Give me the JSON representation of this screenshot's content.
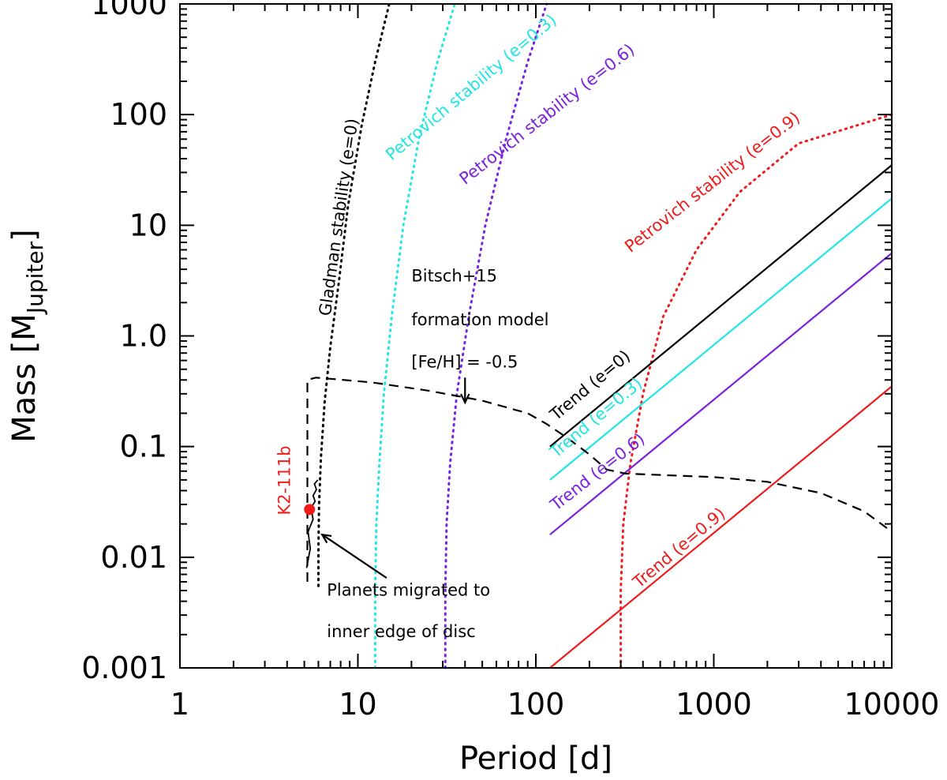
{
  "chart_data": {
    "type": "line",
    "xscale": "log",
    "yscale": "log",
    "xlim": [
      1,
      10000
    ],
    "ylim": [
      0.001,
      1000
    ],
    "xlabel": "Period [d]",
    "ylabel": "Mass [M",
    "ylabel_sub": "Jupiter",
    "ylabel_close": "]",
    "xticks": [
      1,
      10,
      100,
      1000,
      10000
    ],
    "xtick_labels": [
      "1",
      "10",
      "100",
      "1000",
      "10000"
    ],
    "yticks": [
      0.001,
      0.01,
      0.1,
      1.0,
      10,
      100,
      1000
    ],
    "ytick_labels": [
      "0.001",
      "0.01",
      "0.1",
      "1.0",
      "10",
      "100",
      "1000"
    ],
    "colors": {
      "black": "#000000",
      "cyan": "#22e5e5",
      "purple": "#7a22dd",
      "red": "#ee1c1c"
    },
    "series": [
      {
        "name": "Gladman stability (e=0)",
        "style": "dotted",
        "color": "black",
        "x": [
          6.0,
          6.0,
          6.05,
          6.2,
          6.5,
          7.0,
          7.8,
          8.8,
          10.5,
          12.5,
          15.0
        ],
        "y": [
          0.0055,
          0.012,
          0.03,
          0.08,
          0.25,
          0.8,
          3.0,
          15,
          80,
          300,
          1000
        ]
      },
      {
        "name": "Petrovich stability (e=0.3)",
        "style": "dotted",
        "color": "cyan",
        "x": [
          12.5,
          12.5,
          12.7,
          13.2,
          14.0,
          15.5,
          18.0,
          22.0,
          28.0,
          35.0
        ],
        "y": [
          0.001,
          0.005,
          0.02,
          0.07,
          0.3,
          1.5,
          10,
          60,
          300,
          1000
        ]
      },
      {
        "name": "Petrovich stability (e=0.6)",
        "style": "dotted",
        "color": "purple",
        "x": [
          31.0,
          31.0,
          31.5,
          33.0,
          36.0,
          42.0,
          52.0,
          68.0,
          90.0,
          115.0
        ],
        "y": [
          0.001,
          0.005,
          0.02,
          0.07,
          0.3,
          1.5,
          10,
          60,
          300,
          1000
        ]
      },
      {
        "name": "Petrovich stability (e=0.9)",
        "style": "dotted",
        "color": "red",
        "x": [
          300,
          300,
          310,
          340,
          400,
          520,
          800,
          1400,
          3000,
          10000
        ],
        "y": [
          0.001,
          0.005,
          0.02,
          0.07,
          0.3,
          1.5,
          6,
          20,
          55,
          100
        ]
      },
      {
        "name": "Trend (e=0)",
        "style": "solid",
        "color": "black",
        "x": [
          120,
          10000
        ],
        "y": [
          0.1,
          35
        ]
      },
      {
        "name": "Trend (e=0.3)",
        "style": "solid",
        "color": "cyan",
        "x": [
          120,
          10000
        ],
        "y": [
          0.05,
          17.5
        ]
      },
      {
        "name": "Trend (e=0.6)",
        "style": "solid",
        "color": "purple",
        "x": [
          120,
          10000
        ],
        "y": [
          0.016,
          5.6
        ]
      },
      {
        "name": "Trend (e=0.9)",
        "style": "solid",
        "color": "red",
        "x": [
          120,
          10000
        ],
        "y": [
          0.001,
          0.35
        ]
      },
      {
        "name": "Bitsch+15 formation model",
        "style": "dashed",
        "color": "black",
        "x": [
          5.2,
          5.2,
          5.8,
          7.0,
          12,
          25,
          50,
          90,
          115,
          150,
          200,
          250,
          320,
          1000,
          2000,
          4000,
          7000,
          10000
        ],
        "y": [
          0.006,
          0.4,
          0.42,
          0.41,
          0.38,
          0.32,
          0.26,
          0.2,
          0.16,
          0.12,
          0.085,
          0.062,
          0.057,
          0.053,
          0.048,
          0.038,
          0.026,
          0.017
        ]
      },
      {
        "name": "Planets migrated to inner edge of disc",
        "style": "wiggle",
        "color": "black",
        "x": [
          5.15,
          5.4,
          5.25,
          5.6,
          5.45,
          5.75,
          5.6,
          5.85,
          5.7,
          5.95
        ],
        "y": [
          0.008,
          0.012,
          0.017,
          0.022,
          0.028,
          0.032,
          0.036,
          0.041,
          0.046,
          0.05
        ]
      }
    ],
    "points": [
      {
        "name": "K2-111b",
        "x": 5.35,
        "y": 0.027,
        "color": "red"
      }
    ],
    "annotations": [
      {
        "id": "gladman",
        "text": "Gladman stability (e=0)",
        "color": "black",
        "x": 7.0,
        "y": 1.5,
        "angle": -82
      },
      {
        "id": "pet03",
        "text": "Petrovich stability (e=0.3)",
        "color": "cyan",
        "x": 15.5,
        "y": 38,
        "angle": -40
      },
      {
        "id": "pet06",
        "text": "Petrovich stability (e=0.6)",
        "color": "purple",
        "x": 40,
        "y": 23,
        "angle": -38
      },
      {
        "id": "pet09",
        "text": "Petrovich stability (e=0.9)",
        "color": "red",
        "x": 340,
        "y": 5.6,
        "angle": -38
      },
      {
        "id": "trend0",
        "text": "Trend (e=0)",
        "color": "black",
        "x": 130,
        "y": 0.17,
        "angle": -40
      },
      {
        "id": "trend03",
        "text": "Trend (e=0.3)",
        "color": "cyan",
        "x": 130,
        "y": 0.078,
        "angle": -40
      },
      {
        "id": "trend06",
        "text": "Trend (e=0.6)",
        "color": "purple",
        "x": 130,
        "y": 0.026,
        "angle": -38
      },
      {
        "id": "trend09",
        "text": "Trend (e=0.9)",
        "color": "red",
        "x": 380,
        "y": 0.0052,
        "angle": -40
      },
      {
        "id": "k2label",
        "text": "K2-111b",
        "color": "red",
        "x": 4.15,
        "y": 0.024,
        "angle": -90
      },
      {
        "id": "bitsch1",
        "text": "Bitsch+15",
        "color": "black",
        "x": 20,
        "y": 3.1,
        "angle": 0
      },
      {
        "id": "bitsch2",
        "text": "formation model",
        "color": "black",
        "x": 20,
        "y": 1.25,
        "angle": 0
      },
      {
        "id": "bitsch3",
        "text": "[Fe/H] = -0.5",
        "color": "black",
        "x": 20,
        "y": 0.52,
        "angle": 0
      },
      {
        "id": "migr1",
        "text": "Planets migrated to",
        "color": "black",
        "x": 6.7,
        "y": 0.0045,
        "angle": 0
      },
      {
        "id": "migr2",
        "text": "inner edge of disc",
        "color": "black",
        "x": 6.7,
        "y": 0.0019,
        "angle": 0
      }
    ],
    "arrows": [
      {
        "name": "bitsch-arrow",
        "from": [
          40,
          0.42
        ],
        "to": [
          40,
          0.25
        ]
      },
      {
        "name": "migrated-arrow",
        "from": [
          14.5,
          0.0065
        ],
        "to": [
          6.3,
          0.016
        ]
      }
    ]
  }
}
